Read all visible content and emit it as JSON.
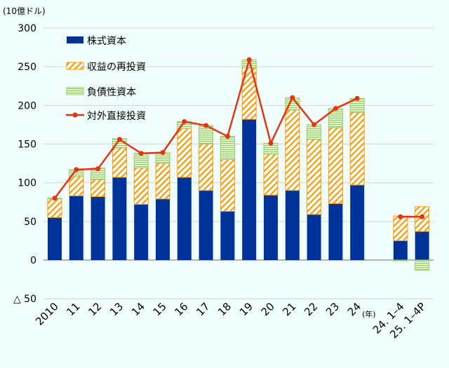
{
  "chart_data": {
    "type": "bar",
    "stacked": true,
    "unit_label": "(10億ドル)",
    "xlabel_suffix": "(年)",
    "categories": [
      "2010",
      "11",
      "12",
      "13",
      "14",
      "15",
      "16",
      "17",
      "18",
      "19",
      "20",
      "21",
      "22",
      "23",
      "24",
      "",
      "24. 1–4",
      "25. 1–4P"
    ],
    "ylim": [
      -50,
      300
    ],
    "yticks": [
      300,
      250,
      200,
      150,
      100,
      50,
      0,
      -50
    ],
    "ytick_labels": [
      "300",
      "250",
      "200",
      "150",
      "100",
      "50",
      "0",
      "△ 50"
    ],
    "grid": true,
    "legend_position": "top-left",
    "series": [
      {
        "name": "株式資本",
        "kind": "bar",
        "color": "#003399",
        "values": [
          55,
          83,
          82,
          107,
          72,
          79,
          107,
          90,
          63,
          182,
          84,
          90,
          59,
          73,
          97,
          null,
          25,
          37
        ]
      },
      {
        "name": "収益の再投資",
        "kind": "bar-hatched",
        "color": "#ff9900",
        "values": [
          24,
          25,
          22,
          38,
          47,
          46,
          63,
          60,
          67,
          67,
          53,
          104,
          97,
          98,
          94,
          null,
          32,
          32
        ]
      },
      {
        "name": "負債性資本",
        "kind": "bar-lined",
        "color": "#99cc66",
        "values": [
          1,
          9,
          15,
          12,
          19,
          14,
          9,
          24,
          30,
          10,
          14,
          16,
          19,
          25,
          18,
          null,
          -1,
          -13
        ]
      },
      {
        "name": "対外直接投資",
        "kind": "line",
        "color": "#e63312",
        "values": [
          80,
          117,
          118,
          156,
          138,
          139,
          179,
          174,
          160,
          259,
          151,
          210,
          175,
          196,
          209,
          null,
          56,
          56
        ]
      }
    ]
  }
}
